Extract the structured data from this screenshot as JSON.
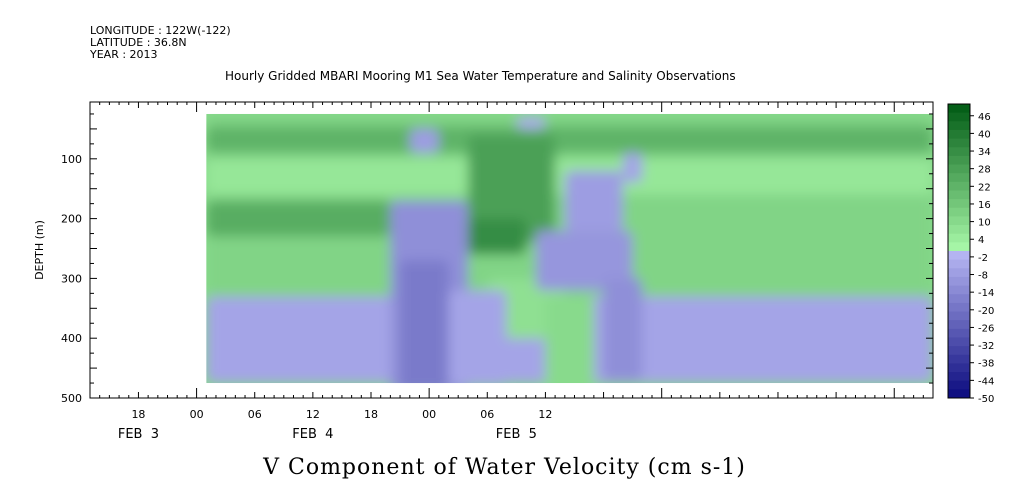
{
  "header": {
    "longitude": "LONGITUDE : 122W(-122)",
    "latitude": "LATITUDE : 36.8N",
    "year": "YEAR : 2013",
    "title": "Hourly Gridded MBARI Mooring M1 Sea Water Temperature and Salinity Observations"
  },
  "bottom_title": "V Component of Water Velocity (cm s-1)",
  "chart_data": {
    "type": "heatmap",
    "title": "Hourly Gridded MBARI Mooring M1 Sea Water Temperature and Salinity Observations",
    "xlabel": "",
    "ylabel": "DEPTH (m)",
    "colorbar_label": "V Component of Water Velocity (cm s-1)",
    "x_range_hours": [
      -11,
      76
    ],
    "y_range_m": [
      500,
      5
    ],
    "y_ticks": [
      100,
      200,
      300,
      400,
      500
    ],
    "x_ticks": [
      {
        "h": -6,
        "label": "18"
      },
      {
        "h": 0,
        "label": "00"
      },
      {
        "h": 6,
        "label": "06"
      },
      {
        "h": 12,
        "label": "12"
      },
      {
        "h": 18,
        "label": "18"
      },
      {
        "h": 24,
        "label": "00"
      },
      {
        "h": 30,
        "label": "06"
      },
      {
        "h": 36,
        "label": "12"
      }
    ],
    "date_labels": [
      {
        "h": -6,
        "label": "FEB  3"
      },
      {
        "h": 12,
        "label": "FEB  4"
      },
      {
        "h": 33,
        "label": "FEB  5"
      }
    ],
    "colorbar_levels": [
      "46",
      "40",
      "34",
      "28",
      "22",
      "16",
      "10",
      "4",
      "-2",
      "-8",
      "-14",
      "-20",
      "-26",
      "-32",
      "-38",
      "-44",
      "-50"
    ],
    "colorbar_range": [
      -50,
      50
    ],
    "data_extent_hours": [
      1,
      76
    ],
    "data_extent_depth_m": [
      25,
      475
    ],
    "regions": [
      {
        "h0": 1,
        "h1": 76,
        "d0": 25,
        "d1": 340,
        "v": 12
      },
      {
        "h0": 1,
        "h1": 76,
        "d0": 100,
        "d1": 160,
        "v": 6
      },
      {
        "h0": 1,
        "h1": 76,
        "d0": 45,
        "d1": 90,
        "v": 22
      },
      {
        "h0": 1,
        "h1": 20,
        "d0": 170,
        "d1": 230,
        "v": 24
      },
      {
        "h0": 1,
        "h1": 76,
        "d0": 330,
        "d1": 475,
        "v": -6
      },
      {
        "h0": 1,
        "h1": 25,
        "d0": 340,
        "d1": 475,
        "v": -6
      },
      {
        "h0": 20,
        "h1": 28,
        "d0": 170,
        "d1": 490,
        "v": -12
      },
      {
        "h0": 21,
        "h1": 26,
        "d0": 270,
        "d1": 490,
        "v": -18
      },
      {
        "h0": 22,
        "h1": 25,
        "d0": 50,
        "d1": 90,
        "v": -8
      },
      {
        "h0": 28,
        "h1": 37,
        "d0": 60,
        "d1": 240,
        "v": 28
      },
      {
        "h0": 28,
        "h1": 34,
        "d0": 200,
        "d1": 260,
        "v": 34
      },
      {
        "h0": 30,
        "h1": 38,
        "d0": 300,
        "d1": 400,
        "v": 8
      },
      {
        "h0": 26,
        "h1": 32,
        "d0": 320,
        "d1": 480,
        "v": -6
      },
      {
        "h0": 35,
        "h1": 45,
        "d0": 220,
        "d1": 320,
        "v": -10
      },
      {
        "h0": 38,
        "h1": 44,
        "d0": 120,
        "d1": 220,
        "v": -8
      },
      {
        "h0": 42,
        "h1": 46,
        "d0": 300,
        "d1": 470,
        "v": -12
      },
      {
        "h0": 36,
        "h1": 41,
        "d0": 330,
        "d1": 480,
        "v": 10
      },
      {
        "h0": 44,
        "h1": 46,
        "d0": 90,
        "d1": 140,
        "v": -6
      },
      {
        "h0": 33,
        "h1": 36,
        "d0": 30,
        "d1": 50,
        "v": -4
      }
    ]
  }
}
